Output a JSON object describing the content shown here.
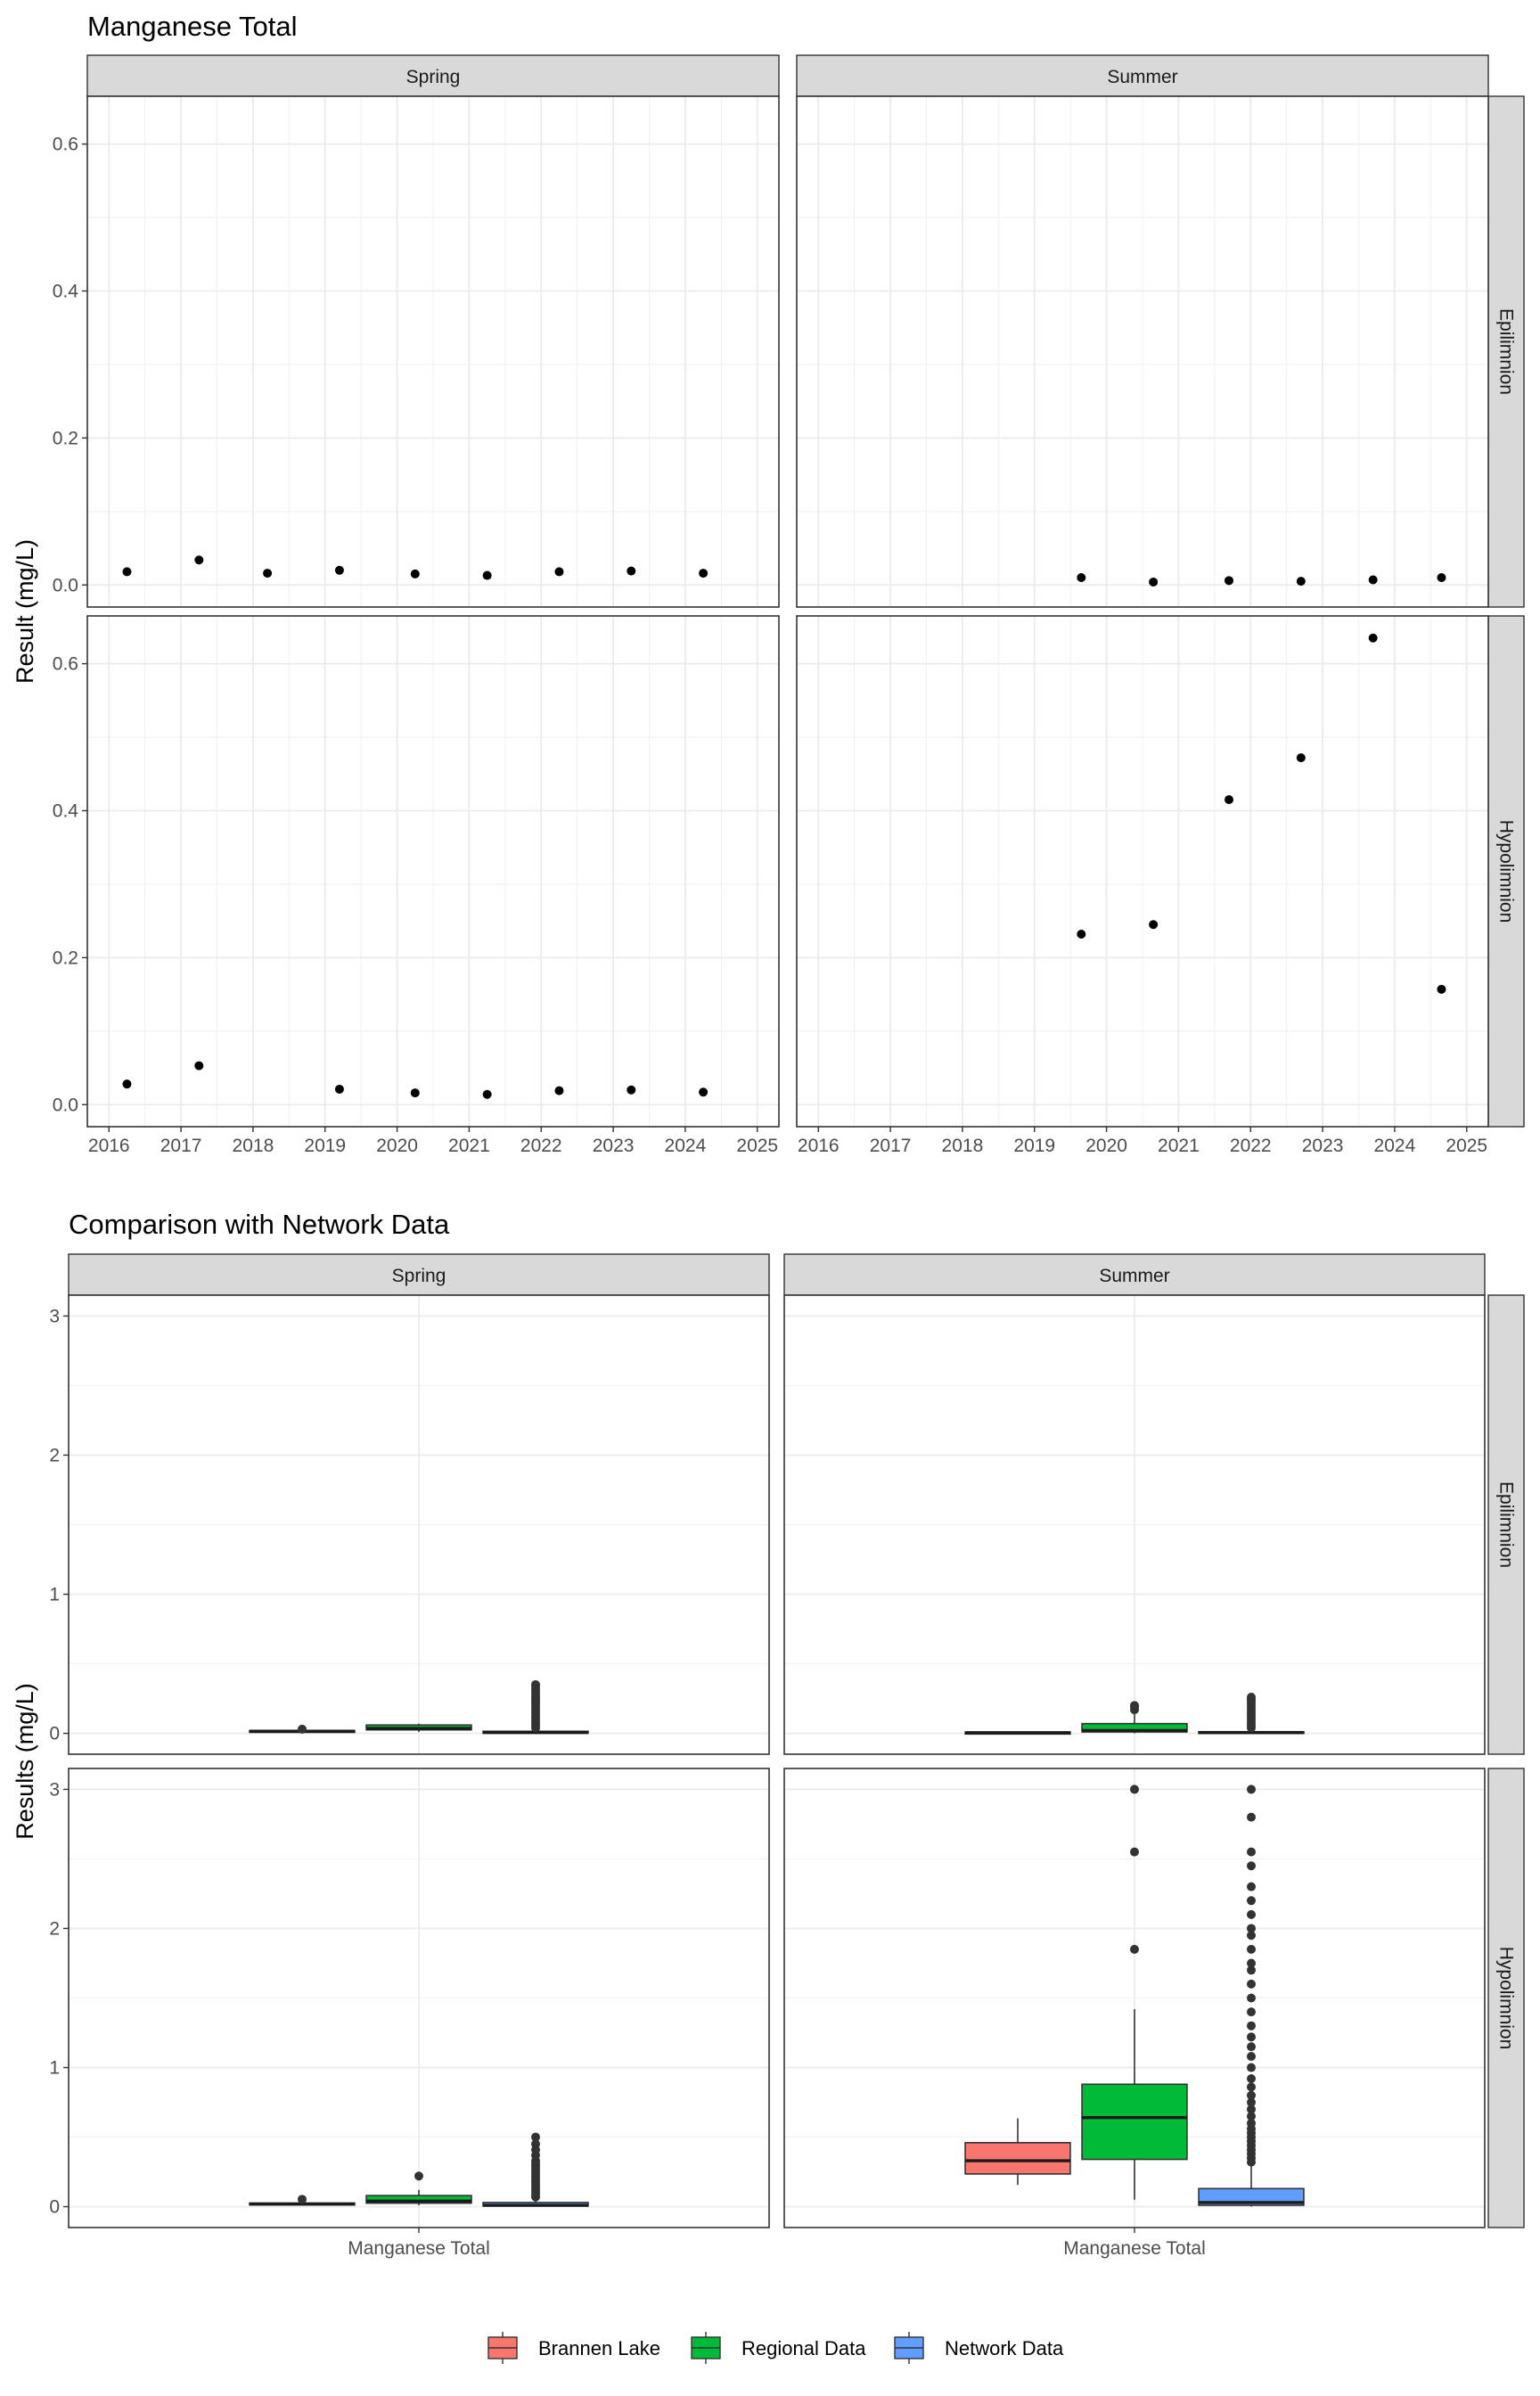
{
  "chart_data": [
    {
      "type": "scatter",
      "title": "Manganese Total",
      "ylabel": "Result (mg/L)",
      "xlabel": "",
      "col_facets": [
        "Spring",
        "Summer"
      ],
      "row_facets": [
        "Epilimnion",
        "Hypolimnion"
      ],
      "xlim": [
        2015.7,
        2025.3
      ],
      "ylim": [
        -0.03,
        0.665
      ],
      "x_ticks": [
        2016,
        2017,
        2018,
        2019,
        2020,
        2021,
        2022,
        2023,
        2024,
        2025
      ],
      "y_ticks": [
        0.0,
        0.2,
        0.4,
        0.6
      ],
      "y_tick_labels": [
        "0.0",
        "0.2",
        "0.4",
        "0.6"
      ],
      "grid": true,
      "panels": [
        {
          "col": "Spring",
          "row": "Epilimnion",
          "points": [
            [
              2016.25,
              0.018
            ],
            [
              2017.25,
              0.034
            ],
            [
              2018.2,
              0.016
            ],
            [
              2019.2,
              0.02
            ],
            [
              2020.25,
              0.015
            ],
            [
              2021.25,
              0.013
            ],
            [
              2022.25,
              0.018
            ],
            [
              2023.25,
              0.019
            ],
            [
              2024.25,
              0.016
            ]
          ]
        },
        {
          "col": "Summer",
          "row": "Epilimnion",
          "points": [
            [
              2019.65,
              0.01
            ],
            [
              2020.65,
              0.004
            ],
            [
              2021.7,
              0.006
            ],
            [
              2022.7,
              0.005
            ],
            [
              2023.7,
              0.007
            ],
            [
              2024.65,
              0.01
            ]
          ]
        },
        {
          "col": "Spring",
          "row": "Hypolimnion",
          "points": [
            [
              2016.25,
              0.028
            ],
            [
              2017.25,
              0.053
            ],
            [
              2019.2,
              0.021
            ],
            [
              2020.25,
              0.016
            ],
            [
              2021.25,
              0.014
            ],
            [
              2022.25,
              0.019
            ],
            [
              2023.25,
              0.02
            ],
            [
              2024.25,
              0.017
            ]
          ]
        },
        {
          "col": "Summer",
          "row": "Hypolimnion",
          "points": [
            [
              2019.65,
              0.232
            ],
            [
              2020.65,
              0.245
            ],
            [
              2021.7,
              0.415
            ],
            [
              2022.7,
              0.472
            ],
            [
              2023.7,
              0.635
            ],
            [
              2024.65,
              0.157
            ]
          ]
        }
      ]
    },
    {
      "type": "box",
      "title": "Comparison with Network Data",
      "ylabel": "Results (mg/L)",
      "categories": [
        "Manganese Total"
      ],
      "col_facets": [
        "Spring",
        "Summer"
      ],
      "row_facets": [
        "Epilimnion",
        "Hypolimnion"
      ],
      "ylim": [
        -0.15,
        3.15
      ],
      "y_ticks": [
        0,
        1,
        2,
        3
      ],
      "grid": true,
      "series": [
        {
          "name": "Brannen Lake",
          "color": "#F8766D"
        },
        {
          "name": "Regional Data",
          "color": "#00BA38"
        },
        {
          "name": "Network Data",
          "color": "#619CFF"
        }
      ],
      "legend_position": "bottom",
      "panels": [
        {
          "col": "Spring",
          "row": "Epilimnion",
          "boxes": [
            {
              "series": "Brannen Lake",
              "lower_whisker": 0.005,
              "q1": 0.01,
              "median": 0.015,
              "q3": 0.02,
              "upper_whisker": 0.03,
              "outliers": [
                0.03
              ]
            },
            {
              "series": "Regional Data",
              "lower_whisker": 0.01,
              "q1": 0.025,
              "median": 0.035,
              "q3": 0.06,
              "upper_whisker": 0.07,
              "outliers": []
            },
            {
              "series": "Network Data",
              "lower_whisker": 0.0,
              "q1": 0.002,
              "median": 0.006,
              "q3": 0.015,
              "upper_whisker": 0.035,
              "outliers": [
                0.04,
                0.06,
                0.08,
                0.1,
                0.12,
                0.14,
                0.16,
                0.18,
                0.2,
                0.22,
                0.24,
                0.26,
                0.28,
                0.3,
                0.32,
                0.34,
                0.35
              ]
            }
          ]
        },
        {
          "col": "Summer",
          "row": "Epilimnion",
          "boxes": [
            {
              "series": "Brannen Lake",
              "lower_whisker": 0.002,
              "q1": 0.003,
              "median": 0.005,
              "q3": 0.008,
              "upper_whisker": 0.01,
              "outliers": []
            },
            {
              "series": "Regional Data",
              "lower_whisker": 0.0,
              "q1": 0.01,
              "median": 0.02,
              "q3": 0.07,
              "upper_whisker": 0.14,
              "outliers": [
                0.17,
                0.19,
                0.2
              ]
            },
            {
              "series": "Network Data",
              "lower_whisker": 0.0,
              "q1": 0.002,
              "median": 0.005,
              "q3": 0.012,
              "upper_whisker": 0.03,
              "outliers": [
                0.04,
                0.06,
                0.08,
                0.1,
                0.12,
                0.14,
                0.16,
                0.18,
                0.2,
                0.22,
                0.24,
                0.26
              ]
            }
          ]
        },
        {
          "col": "Spring",
          "row": "Hypolimnion",
          "boxes": [
            {
              "series": "Brannen Lake",
              "lower_whisker": 0.014,
              "q1": 0.017,
              "median": 0.02,
              "q3": 0.025,
              "upper_whisker": 0.03,
              "outliers": [
                0.053
              ]
            },
            {
              "series": "Regional Data",
              "lower_whisker": 0.01,
              "q1": 0.025,
              "median": 0.04,
              "q3": 0.08,
              "upper_whisker": 0.12,
              "outliers": [
                0.22
              ]
            },
            {
              "series": "Network Data",
              "lower_whisker": 0.0,
              "q1": 0.005,
              "median": 0.01,
              "q3": 0.03,
              "upper_whisker": 0.06,
              "outliers": [
                0.07,
                0.09,
                0.11,
                0.13,
                0.15,
                0.17,
                0.19,
                0.21,
                0.23,
                0.25,
                0.27,
                0.29,
                0.31,
                0.33,
                0.37,
                0.41,
                0.45,
                0.5
              ]
            }
          ]
        },
        {
          "col": "Summer",
          "row": "Hypolimnion",
          "boxes": [
            {
              "series": "Brannen Lake",
              "lower_whisker": 0.157,
              "q1": 0.235,
              "median": 0.33,
              "q3": 0.46,
              "upper_whisker": 0.635,
              "outliers": []
            },
            {
              "series": "Regional Data",
              "lower_whisker": 0.05,
              "q1": 0.34,
              "median": 0.64,
              "q3": 0.88,
              "upper_whisker": 1.42,
              "outliers": [
                1.85,
                2.55,
                3.0
              ]
            },
            {
              "series": "Network Data",
              "lower_whisker": 0.0,
              "q1": 0.01,
              "median": 0.03,
              "q3": 0.13,
              "upper_whisker": 0.3,
              "outliers": [
                0.32,
                0.35,
                0.38,
                0.41,
                0.44,
                0.47,
                0.5,
                0.53,
                0.56,
                0.6,
                0.65,
                0.7,
                0.75,
                0.8,
                0.86,
                0.92,
                1.0,
                1.08,
                1.15,
                1.22,
                1.3,
                1.4,
                1.5,
                1.6,
                1.7,
                1.75,
                1.85,
                1.95,
                2.0,
                2.1,
                2.2,
                2.3,
                2.45,
                2.55,
                2.8,
                3.0
              ]
            }
          ]
        }
      ]
    }
  ]
}
